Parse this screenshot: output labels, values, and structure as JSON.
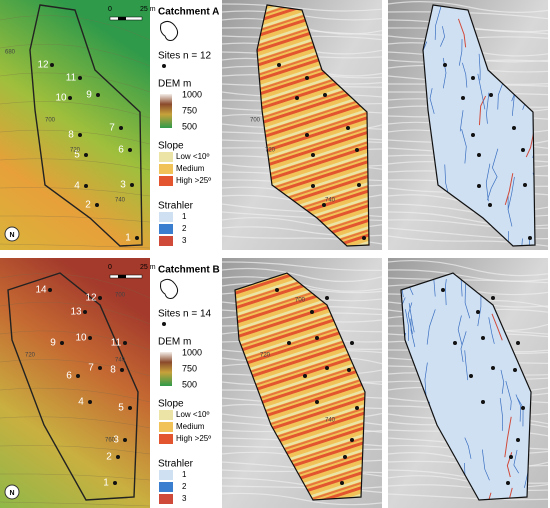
{
  "panels": [
    {
      "catchment": "Catchment A",
      "sites_legend": "Sites n = 12",
      "dem_title": "DEM m",
      "dem_ticks": [
        "1000",
        "750",
        "500"
      ],
      "slope_title": "Slope",
      "slope_classes": [
        "Low <10º",
        "Medium",
        "High >25º"
      ],
      "strahler_title": "Strahler",
      "strahler_orders": [
        "1",
        "2",
        "3"
      ],
      "scale": [
        "0",
        "25 m"
      ],
      "north": "N",
      "sites": [
        "1",
        "2",
        "3",
        "4",
        "5",
        "6",
        "7",
        "8",
        "9",
        "10",
        "11",
        "12"
      ],
      "contours": [
        "680",
        "700",
        "720",
        "740",
        "700",
        "720",
        "740"
      ]
    },
    {
      "catchment": "Catchment B",
      "sites_legend": "Sites n = 14",
      "dem_title": "DEM m",
      "dem_ticks": [
        "1000",
        "750",
        "500"
      ],
      "slope_title": "Slope",
      "slope_classes": [
        "Low <10º",
        "Medium",
        "High >25º"
      ],
      "strahler_title": "Strahler",
      "strahler_orders": [
        "1",
        "2",
        "3"
      ],
      "scale": [
        "0",
        "25 m"
      ],
      "north": "N",
      "sites": [
        "1",
        "2",
        "3",
        "4",
        "5",
        "6",
        "7",
        "8",
        "9",
        "10",
        "11",
        "12",
        "13",
        "14"
      ],
      "contours": [
        "700",
        "720",
        "740",
        "760",
        "700",
        "720",
        "740"
      ]
    }
  ]
}
